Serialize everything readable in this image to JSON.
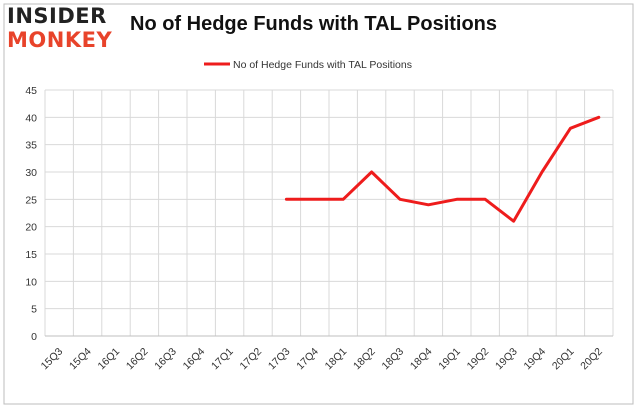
{
  "logo": {
    "line1": "INSIDER",
    "line2": "MONKEY"
  },
  "chart_data": {
    "type": "line",
    "title": "No of Hedge Funds with TAL Positions",
    "xlabel": "",
    "ylabel": "",
    "categories": [
      "15Q3",
      "15Q4",
      "16Q1",
      "16Q2",
      "16Q3",
      "16Q4",
      "17Q1",
      "17Q2",
      "17Q3",
      "17Q4",
      "18Q1",
      "18Q2",
      "18Q3",
      "18Q4",
      "19Q1",
      "19Q2",
      "19Q3",
      "19Q4",
      "20Q1",
      "20Q2"
    ],
    "series": [
      {
        "name": "No of Hedge Funds with TAL Positions",
        "color": "#ee1c1c",
        "values": [
          null,
          null,
          null,
          null,
          null,
          null,
          null,
          null,
          25,
          25,
          25,
          30,
          25,
          24,
          25,
          25,
          21,
          30,
          38,
          40
        ]
      }
    ],
    "ylim": [
      0,
      45
    ],
    "yticks": [
      0,
      5,
      10,
      15,
      20,
      25,
      30,
      35,
      40,
      45
    ],
    "grid": true,
    "legend": "top-center"
  }
}
